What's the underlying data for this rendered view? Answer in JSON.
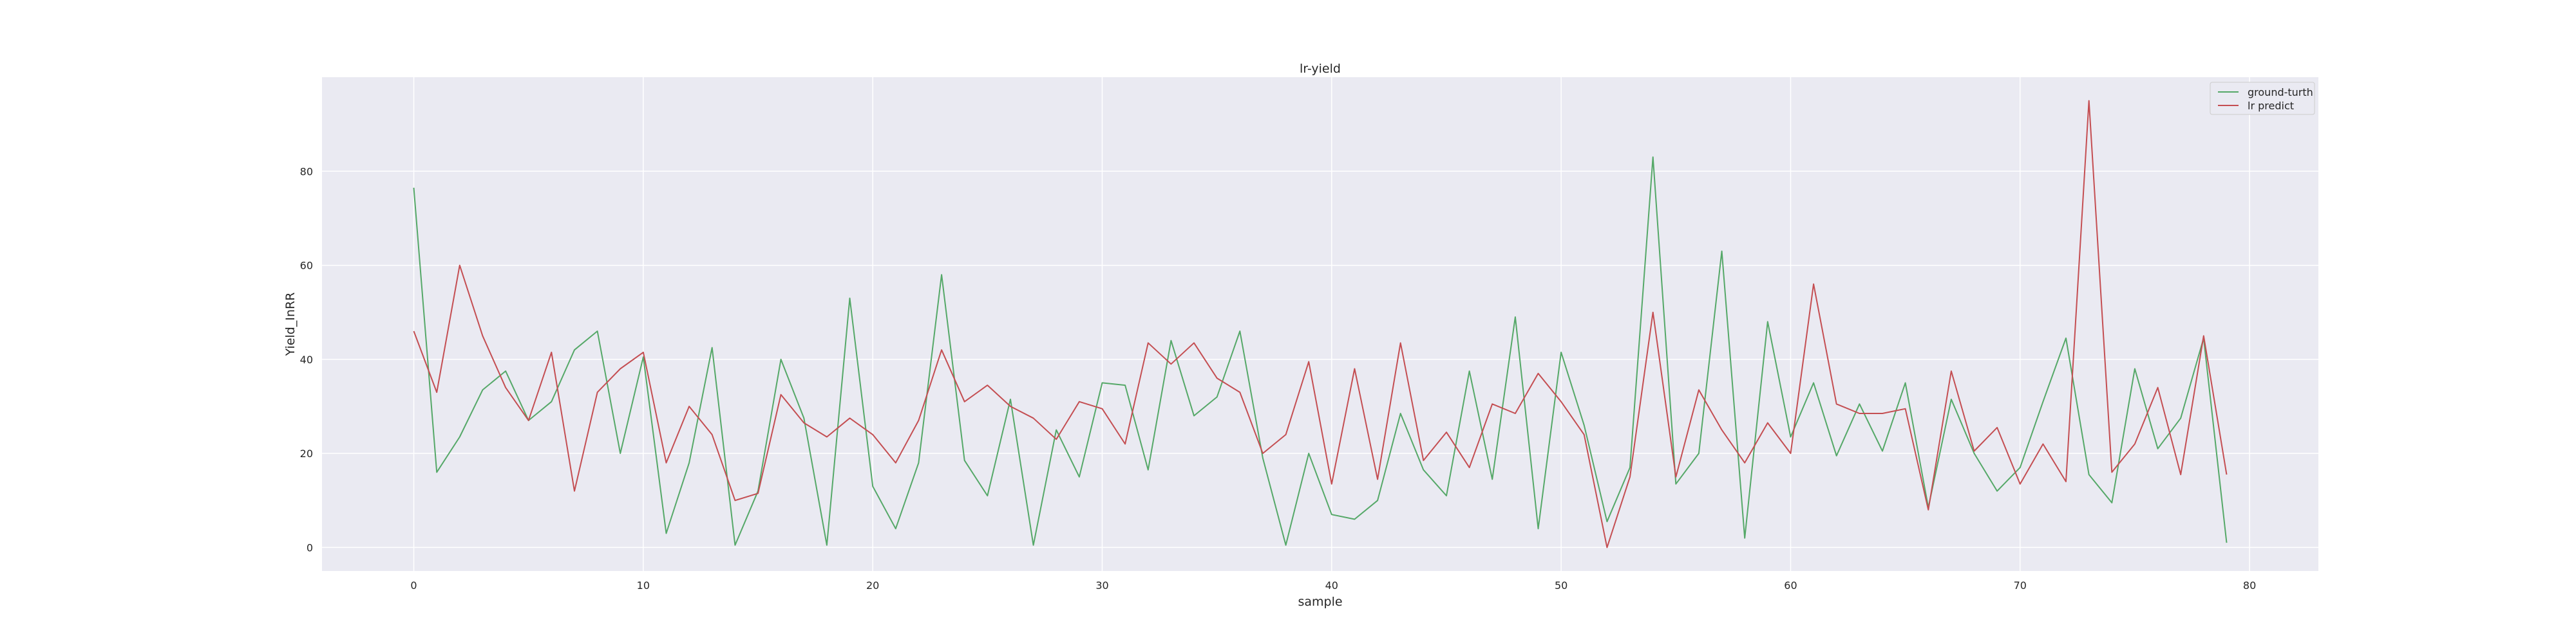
{
  "chart_data": {
    "type": "line",
    "title": "lr-yield",
    "xlabel": "sample",
    "ylabel": "Yield_InRR",
    "xlim": [
      -4,
      83
    ],
    "ylim": [
      -5,
      100
    ],
    "xticks": [
      0,
      10,
      20,
      30,
      40,
      50,
      60,
      70,
      80
    ],
    "yticks": [
      0,
      20,
      40,
      60,
      80
    ],
    "grid": true,
    "legend_position": "top-right",
    "x": [
      0,
      1,
      2,
      3,
      4,
      5,
      6,
      7,
      8,
      9,
      10,
      11,
      12,
      13,
      14,
      15,
      16,
      17,
      18,
      19,
      20,
      21,
      22,
      23,
      24,
      25,
      26,
      27,
      28,
      29,
      30,
      31,
      32,
      33,
      34,
      35,
      36,
      37,
      38,
      39,
      40,
      41,
      42,
      43,
      44,
      45,
      46,
      47,
      48,
      49,
      50,
      51,
      52,
      53,
      54,
      55,
      56,
      57,
      58,
      59,
      60,
      61,
      62,
      63,
      64,
      65,
      66,
      67,
      68,
      69,
      70,
      71,
      72,
      73,
      74,
      75,
      76,
      77,
      78,
      79
    ],
    "series": [
      {
        "name": "ground-turth",
        "color": "#55a868",
        "values": [
          76.5,
          16,
          23.5,
          33.5,
          37.5,
          27,
          31,
          42,
          46,
          20,
          40.5,
          3,
          18,
          42.5,
          0.5,
          12,
          40,
          27.5,
          0.5,
          53,
          13,
          4,
          18,
          58,
          18.5,
          11,
          31.5,
          0.5,
          25,
          15,
          35,
          34.5,
          16.5,
          44,
          28,
          32,
          46,
          19,
          0.5,
          20,
          7,
          6,
          10,
          28.5,
          16.5,
          11,
          37.5,
          14.5,
          49,
          4,
          41.5,
          26,
          5.5,
          17,
          83,
          13.5,
          20,
          63,
          2,
          48,
          23.5,
          35,
          19.5,
          30.5,
          20.5,
          35,
          8.5,
          31.5,
          20,
          12,
          17,
          31,
          44.5,
          15.5,
          9.5,
          38,
          21,
          27.5,
          44.5,
          1
        ]
      },
      {
        "name": "lr predict",
        "color": "#c44e52",
        "values": [
          46,
          33,
          60,
          45,
          34,
          27,
          41.5,
          12,
          33,
          38,
          41.5,
          18,
          30,
          24,
          10,
          11.5,
          32.5,
          26.5,
          23.5,
          27.5,
          24,
          18,
          27,
          42,
          31,
          34.5,
          30,
          27.5,
          23,
          31,
          29.5,
          22,
          43.5,
          39,
          43.5,
          36,
          33,
          20,
          24,
          39.5,
          13.5,
          38,
          14.5,
          43.5,
          18.5,
          24.5,
          17,
          30.5,
          28.5,
          37,
          31,
          24,
          0,
          15,
          50,
          15,
          33.5,
          25,
          18,
          26.5,
          20,
          56,
          30.5,
          28.5,
          28.5,
          29.5,
          8,
          37.5,
          20.5,
          25.5,
          13.5,
          22,
          14,
          95,
          16,
          22,
          34,
          15.5,
          45,
          15.5
        ]
      }
    ]
  }
}
